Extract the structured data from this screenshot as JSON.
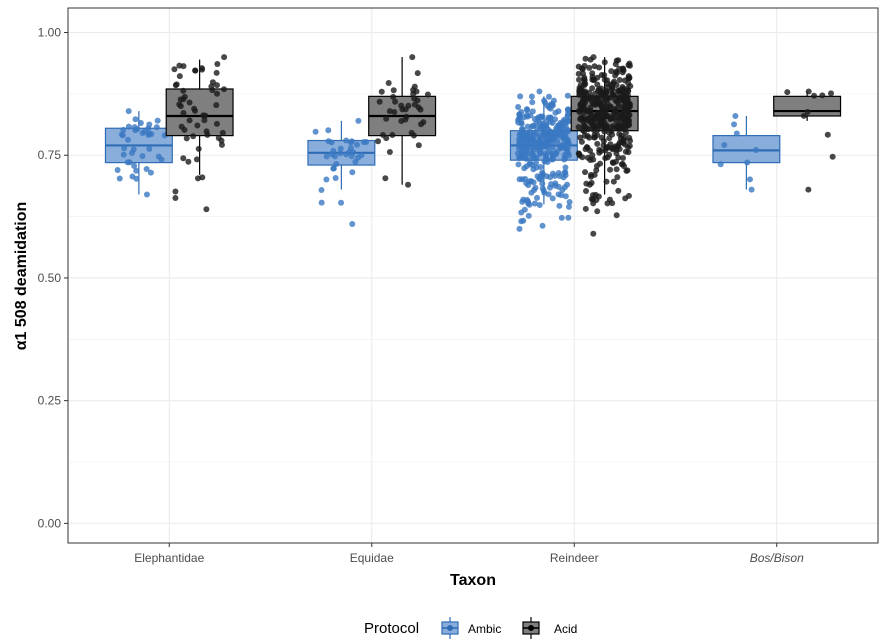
{
  "chart_data": {
    "type": "boxplot",
    "xlabel": "Taxon",
    "ylabel": "α1 508 deamidation",
    "ylim": [
      -0.04,
      1.05
    ],
    "yticks": [
      "0.00",
      "0.25",
      "0.50",
      "0.75",
      "1.00"
    ],
    "ytick_values": [
      0,
      0.25,
      0.5,
      0.75,
      1.0
    ],
    "categories": [
      "Elephantidae",
      "Equidae",
      "Reindeer",
      "Bos/Bison"
    ],
    "category_italic": [
      false,
      false,
      false,
      true
    ],
    "grid": true,
    "legend": {
      "title": "Protocol",
      "position": "bottom"
    },
    "series": [
      {
        "name": "Ambic",
        "color": "#3a78c2",
        "boxes": [
          {
            "min": 0.67,
            "q1": 0.735,
            "median": 0.77,
            "q3": 0.805,
            "max": 0.84,
            "n": 40,
            "points_min": 0.67,
            "points_max": 0.84
          },
          {
            "min": 0.68,
            "q1": 0.73,
            "median": 0.755,
            "q3": 0.78,
            "max": 0.82,
            "n": 35,
            "points_min": 0.61,
            "points_max": 0.82
          },
          {
            "min": 0.65,
            "q1": 0.74,
            "median": 0.77,
            "q3": 0.8,
            "max": 0.87,
            "n": 320,
            "points_min": 0.6,
            "points_max": 0.88
          },
          {
            "min": 0.68,
            "q1": 0.735,
            "median": 0.76,
            "q3": 0.79,
            "max": 0.83,
            "n": 9,
            "points_min": 0.68,
            "points_max": 0.83
          }
        ]
      },
      {
        "name": "Acid",
        "color": "#1a1a1a",
        "boxes": [
          {
            "min": 0.71,
            "q1": 0.79,
            "median": 0.83,
            "q3": 0.885,
            "max": 0.945,
            "n": 55,
            "points_min": 0.64,
            "points_max": 0.95
          },
          {
            "min": 0.69,
            "q1": 0.79,
            "median": 0.83,
            "q3": 0.87,
            "max": 0.95,
            "n": 40,
            "points_min": 0.69,
            "points_max": 0.95
          },
          {
            "min": 0.67,
            "q1": 0.8,
            "median": 0.84,
            "q3": 0.87,
            "max": 0.95,
            "n": 420,
            "points_min": 0.59,
            "points_max": 0.95
          },
          {
            "min": 0.82,
            "q1": 0.83,
            "median": 0.84,
            "q3": 0.87,
            "max": 0.88,
            "n": 10,
            "points_min": 0.68,
            "points_max": 0.88
          }
        ]
      }
    ]
  }
}
